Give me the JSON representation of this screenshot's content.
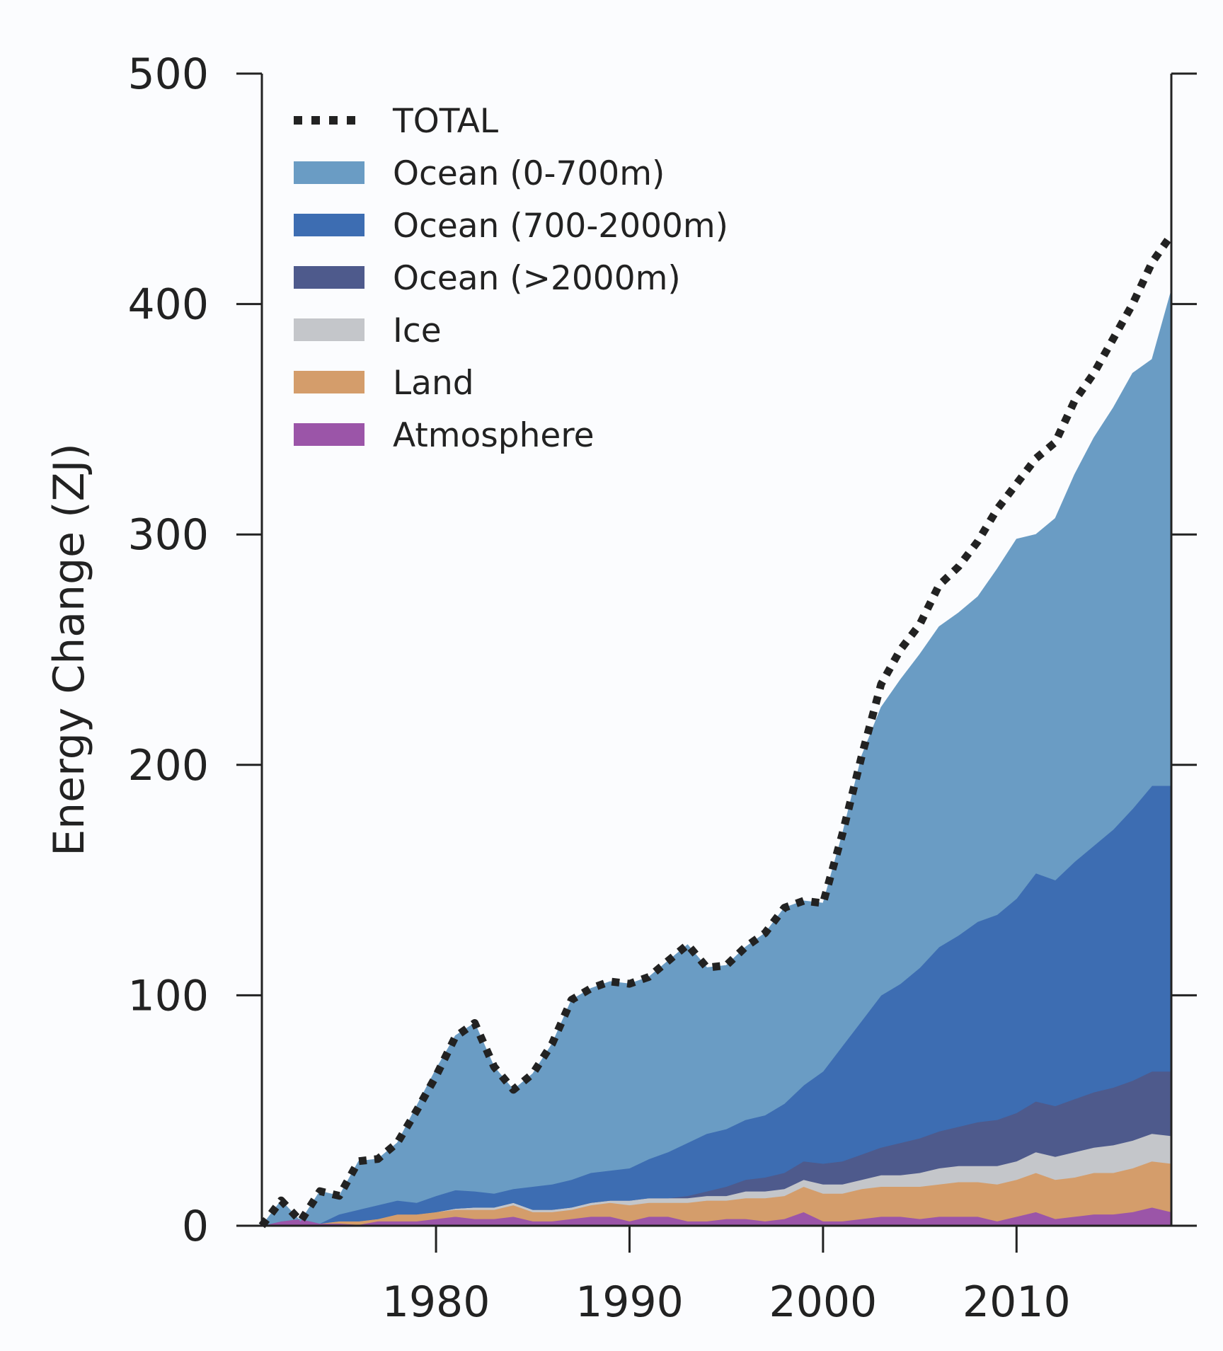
{
  "chart_data": {
    "type": "area",
    "stacked": true,
    "ylabel": "Energy Change (ZJ)",
    "xlabel": "",
    "xlim": [
      1971,
      2018
    ],
    "ylim": [
      0,
      500
    ],
    "xticks": [
      1980,
      1990,
      2000,
      2010
    ],
    "yticks": [
      0,
      100,
      200,
      300,
      400,
      500
    ],
    "grid": false,
    "legend_position": "top-left",
    "x": [
      1971,
      1972,
      1973,
      1974,
      1975,
      1976,
      1977,
      1978,
      1979,
      1980,
      1981,
      1982,
      1983,
      1984,
      1985,
      1986,
      1987,
      1988,
      1989,
      1990,
      1991,
      1992,
      1993,
      1994,
      1995,
      1996,
      1997,
      1998,
      1999,
      2000,
      2001,
      2002,
      2003,
      2004,
      2005,
      2006,
      2007,
      2008,
      2009,
      2010,
      2011,
      2012,
      2013,
      2014,
      2015,
      2016,
      2017,
      2018
    ],
    "series": [
      {
        "name": "Atmosphere",
        "color": "#9b55a8",
        "values": [
          0,
          2,
          3,
          1,
          1,
          0.5,
          2,
          2,
          2,
          3,
          4,
          3,
          3,
          4,
          2,
          2,
          3,
          4,
          4,
          2,
          4,
          4,
          2,
          2,
          3,
          3,
          2,
          3,
          6,
          2,
          2,
          3,
          4,
          4,
          3,
          4,
          4,
          4,
          2,
          4,
          6,
          3,
          4,
          5,
          5,
          6,
          8,
          6
        ]
      },
      {
        "name": "Land",
        "color": "#d49d6b",
        "values": [
          0,
          0,
          0,
          0,
          1,
          1.5,
          1,
          3,
          3,
          3,
          3,
          4,
          4,
          5,
          4,
          4,
          4,
          5,
          6,
          7,
          6,
          6,
          8,
          9,
          8,
          9,
          10,
          10,
          11,
          12,
          12,
          13,
          13,
          13,
          14,
          14,
          15,
          15,
          16,
          16,
          17,
          17,
          17,
          18,
          18,
          19,
          20,
          21
        ]
      },
      {
        "name": "Ice",
        "color": "#c4c6ca",
        "values": [
          0,
          0,
          0,
          0,
          0,
          0,
          0,
          0,
          0,
          0,
          0.5,
          1,
          1,
          1,
          1,
          1,
          1,
          1,
          1,
          2,
          2,
          2,
          2,
          2,
          2,
          3,
          3,
          3,
          3,
          4,
          4,
          4,
          5,
          5,
          6,
          7,
          7,
          7,
          8,
          8,
          9,
          10,
          11,
          11,
          12,
          12,
          12,
          12
        ]
      },
      {
        "name": "Ocean (>2000m)",
        "color": "#4e5a8c",
        "values": [
          0,
          0,
          0,
          0,
          0,
          0,
          0,
          0,
          0,
          0,
          0,
          0,
          0,
          0,
          0,
          0,
          0,
          0,
          0,
          0,
          0,
          0,
          1,
          2,
          4,
          5,
          6,
          7,
          8,
          9,
          10,
          11,
          12,
          14,
          15,
          16,
          17,
          19,
          20,
          21,
          22,
          22,
          23,
          24,
          25,
          26,
          27,
          28
        ]
      },
      {
        "name": "Ocean (700-2000m)",
        "color": "#3d6db2",
        "values": [
          0,
          0,
          0,
          0,
          3,
          5,
          6,
          6,
          5,
          7,
          8,
          7,
          6,
          6,
          10,
          11,
          12,
          13,
          13,
          14,
          17,
          20,
          23,
          25,
          25,
          26,
          27,
          30,
          33,
          40,
          50,
          58,
          66,
          69,
          74,
          80,
          83,
          87,
          89,
          93,
          99,
          98,
          103,
          107,
          112,
          118,
          124,
          124
        ]
      },
      {
        "name": "Ocean (0-700m)",
        "color": "#6a9cc4",
        "values": [
          0,
          9,
          -1,
          14,
          8,
          21,
          20,
          25,
          42,
          55,
          67,
          73,
          55,
          43,
          49,
          61,
          78,
          80,
          82,
          80,
          79,
          83,
          86,
          72,
          71,
          75,
          79,
          85,
          80,
          73,
          92,
          115,
          125,
          132,
          136,
          139,
          140,
          141,
          150,
          156,
          147,
          157,
          168,
          177,
          183,
          189,
          185,
          215
        ]
      },
      {
        "name": "TOTAL",
        "color": "#222222",
        "line": "dotted",
        "values": [
          0,
          11,
          2,
          15,
          13,
          28,
          29,
          36,
          50,
          65,
          82,
          88,
          69,
          59,
          66,
          79,
          98,
          103,
          106,
          105,
          108,
          115,
          122,
          112,
          113,
          121,
          127,
          138,
          141,
          140,
          170,
          204,
          235,
          250,
          261,
          278,
          286,
          297,
          311,
          322,
          333,
          340,
          358,
          370,
          385,
          400,
          418,
          430
        ]
      }
    ]
  }
}
